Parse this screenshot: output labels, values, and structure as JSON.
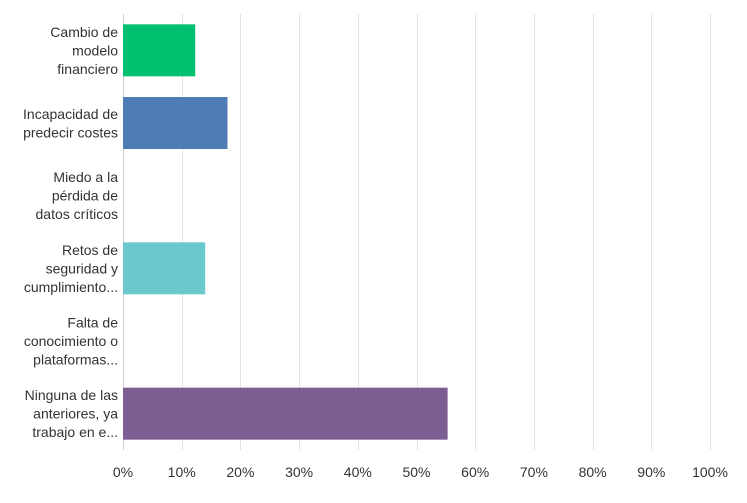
{
  "chart_data": {
    "type": "bar",
    "orientation": "horizontal",
    "categories": [
      [
        "Cambio de",
        "modelo",
        "financiero"
      ],
      [
        "Incapacidad de",
        "predecir costes"
      ],
      [
        "Miedo a la",
        "pérdida de",
        "datos críticos"
      ],
      [
        "Retos de",
        "seguridad y",
        "cumplimiento..."
      ],
      [
        "Falta de",
        "conocimiento o",
        "plataformas..."
      ],
      [
        "Ninguna de las",
        "anteriores, ya",
        "trabajo en e..."
      ]
    ],
    "values": [
      12.3,
      17.8,
      0,
      14.0,
      0,
      55.3
    ],
    "colors": [
      "#00bf6f",
      "#507cb6",
      "#6bc8cd",
      "#6bc8cd",
      "#7d5e92",
      "#7d5e92"
    ],
    "xlim": [
      0,
      100
    ],
    "xticks": [
      0,
      10,
      20,
      30,
      40,
      50,
      60,
      70,
      80,
      90,
      100
    ],
    "tick_suffix": "%",
    "grid": true
  }
}
